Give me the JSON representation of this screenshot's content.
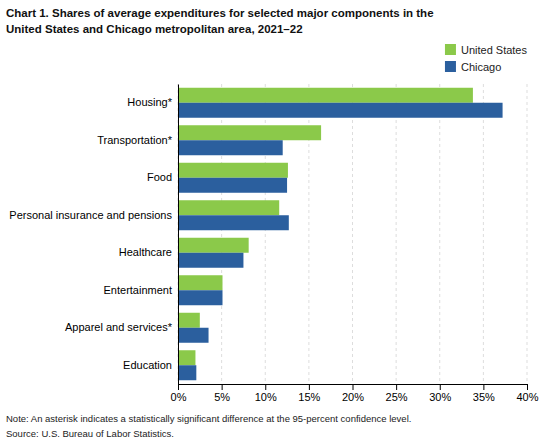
{
  "chart_data": {
    "type": "bar",
    "orientation": "horizontal",
    "title": "Chart 1. Shares of average expenditures for selected major components in the",
    "subtitle": "United States and Chicago metropolitan area, 2021–22",
    "categories": [
      "Education",
      "Apparel and services*",
      "Entertainment",
      "Healthcare",
      "Personal insurance and pensions",
      "Food",
      "Transportation*",
      "Housing*"
    ],
    "series": [
      {
        "name": "United States",
        "color": "#8bc94a",
        "values": [
          2.0,
          2.5,
          5.1,
          8.1,
          11.6,
          12.6,
          16.4,
          33.8
        ]
      },
      {
        "name": "Chicago",
        "color": "#2b5f9e",
        "values": [
          2.1,
          3.5,
          5.1,
          7.5,
          12.7,
          12.5,
          12.0,
          37.2
        ]
      }
    ],
    "xlim": [
      0,
      40
    ],
    "xticks": [
      {
        "value": 0,
        "label": "0%"
      },
      {
        "value": 5,
        "label": "5%"
      },
      {
        "value": 10,
        "label": "10%"
      },
      {
        "value": 15,
        "label": "15%"
      },
      {
        "value": 20,
        "label": "20%"
      },
      {
        "value": 25,
        "label": "25%"
      },
      {
        "value": 30,
        "label": "30%"
      },
      {
        "value": 35,
        "label": "35%"
      },
      {
        "value": 40,
        "label": "40%"
      }
    ],
    "grid": true,
    "legend": "top-right",
    "annotations": [
      "Note: An asterisk indicates a statistically significant difference at the 95-percent confidence level.",
      "Source: U.S. Bureau of Labor Statistics."
    ]
  }
}
